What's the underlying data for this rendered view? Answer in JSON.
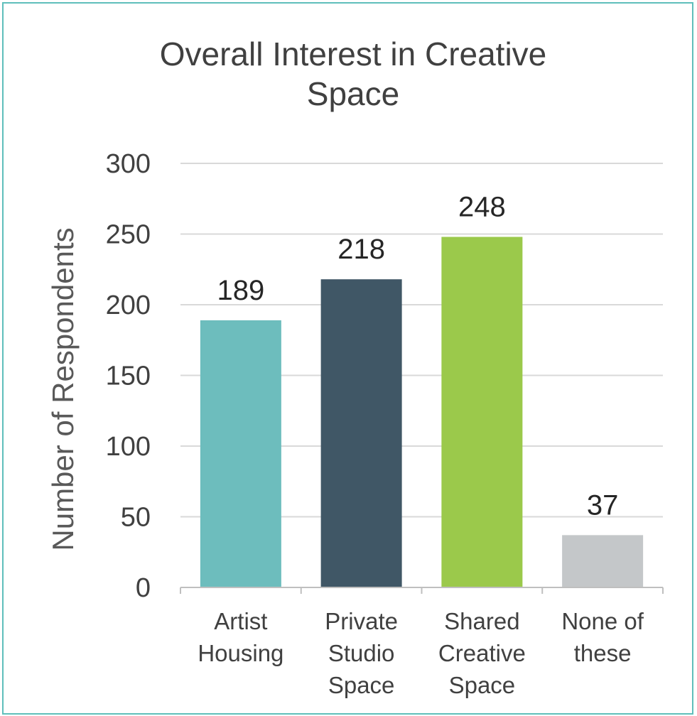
{
  "chart_data": {
    "type": "bar",
    "title": [
      "Overall Interest in Creative",
      "Space"
    ],
    "xlabel": "",
    "ylabel": "Number of Respondents",
    "categories": [
      [
        "Artist",
        "Housing"
      ],
      [
        "Private",
        "Studio",
        "Space"
      ],
      [
        "Shared",
        "Creative",
        "Space"
      ],
      [
        "None of",
        "these"
      ]
    ],
    "values": [
      189,
      218,
      248,
      37
    ],
    "data_labels": [
      "189",
      "218",
      "248",
      "37"
    ],
    "colors": [
      "#6dbdbd",
      "#405766",
      "#9bc94b",
      "#c4c7c9"
    ],
    "ylim": [
      0,
      300
    ],
    "yticks": [
      0,
      50,
      100,
      150,
      200,
      250,
      300
    ],
    "grid": true,
    "legend": "none"
  },
  "style": {
    "frame_color": "#5fbfbb",
    "grid_color": "#d9d9d9",
    "axis_color": "#bfbfbf"
  }
}
